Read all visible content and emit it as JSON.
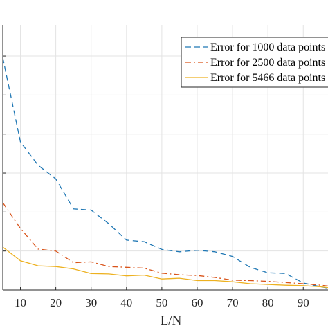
{
  "chart_data": {
    "type": "line",
    "title": "",
    "xlabel": "L/N",
    "ylabel": "",
    "xlim": [
      5,
      97
    ],
    "ylim": [
      0,
      0.68
    ],
    "x_ticks": [
      10,
      20,
      30,
      40,
      50,
      60,
      70,
      80,
      90
    ],
    "y_ticks": [
      0.1,
      0.2,
      0.3,
      0.4,
      0.5,
      0.6
    ],
    "grid": true,
    "legend_position": "top-right",
    "x": [
      5,
      10,
      15,
      20,
      25,
      30,
      35,
      40,
      45,
      50,
      55,
      60,
      65,
      70,
      75,
      80,
      85,
      90,
      95,
      97
    ],
    "series": [
      {
        "name": "Error for 1000 data points",
        "color": "#1f77b4",
        "dash": "dashed",
        "values": [
          0.596,
          0.38,
          0.32,
          0.285,
          0.208,
          0.205,
          0.17,
          0.128,
          0.124,
          0.104,
          0.098,
          0.102,
          0.098,
          0.086,
          0.058,
          0.044,
          0.042,
          0.018,
          0.008,
          0.005
        ]
      },
      {
        "name": "Error for 2500 data points",
        "color": "#d95319",
        "dash": "dashdot",
        "values": [
          0.224,
          0.158,
          0.105,
          0.1,
          0.07,
          0.072,
          0.06,
          0.058,
          0.056,
          0.043,
          0.039,
          0.037,
          0.032,
          0.025,
          0.024,
          0.022,
          0.019,
          0.016,
          0.012,
          0.01
        ]
      },
      {
        "name": "Error for 5466 data points",
        "color": "#edb120",
        "dash": "solid",
        "values": [
          0.11,
          0.075,
          0.062,
          0.06,
          0.054,
          0.042,
          0.041,
          0.036,
          0.038,
          0.028,
          0.03,
          0.024,
          0.024,
          0.021,
          0.016,
          0.014,
          0.012,
          0.011,
          0.008,
          0.006
        ]
      }
    ]
  }
}
